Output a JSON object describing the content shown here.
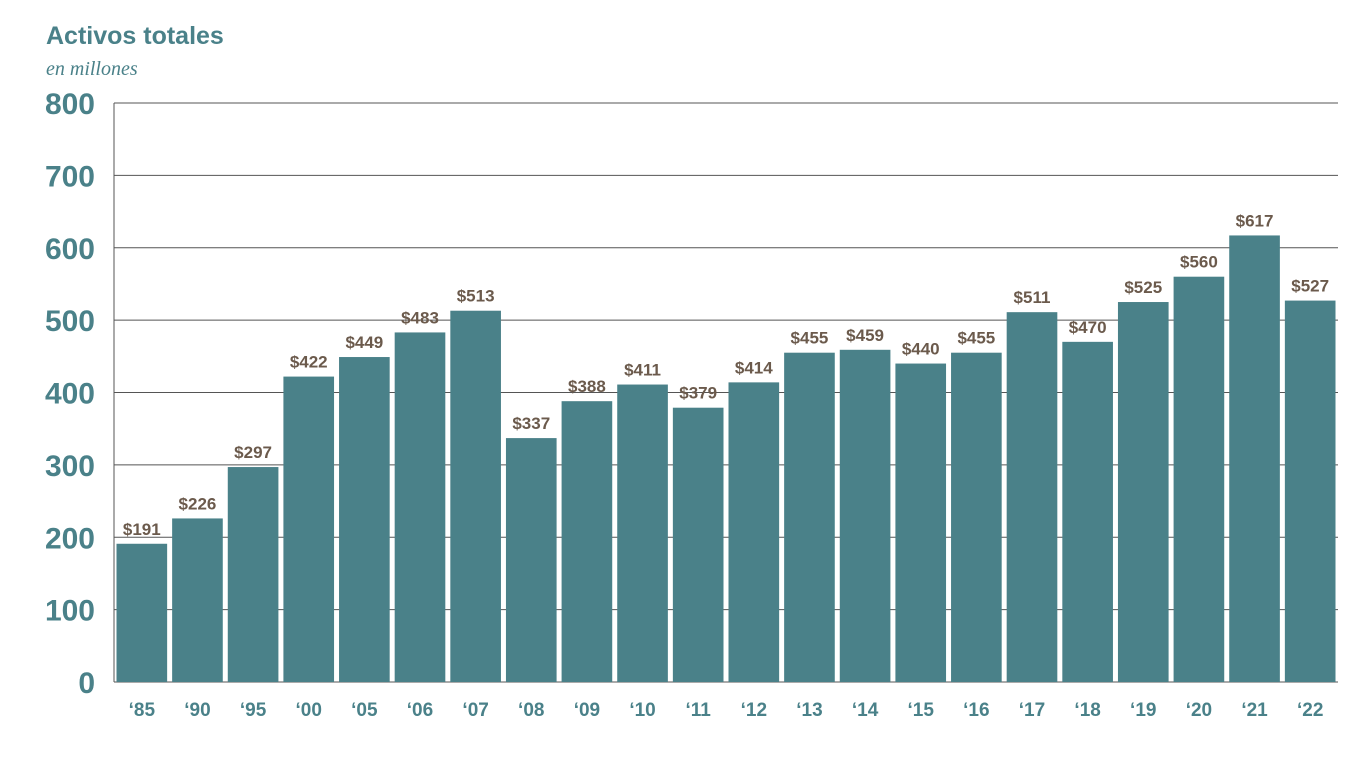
{
  "chart_data": {
    "type": "bar",
    "title": "Activos totales",
    "subtitle": "en millones",
    "xlabel": "",
    "ylabel": "",
    "categories": [
      "‘85",
      "‘90",
      "‘95",
      "‘00",
      "‘05",
      "‘06",
      "‘07",
      "‘08",
      "‘09",
      "‘10",
      "‘11",
      "‘12",
      "‘13",
      "‘14",
      "‘15",
      "‘16",
      "‘17",
      "‘18",
      "‘19",
      "‘20",
      "‘21",
      "‘22"
    ],
    "values": [
      191,
      226,
      297,
      422,
      449,
      483,
      513,
      337,
      388,
      411,
      379,
      414,
      455,
      459,
      440,
      455,
      511,
      470,
      525,
      560,
      617,
      527
    ],
    "data_labels": [
      "$191",
      "$226",
      "$297",
      "$422",
      "$449",
      "$483",
      "$513",
      "$337",
      "$388",
      "$411",
      "$379",
      "$414",
      "$455",
      "$459",
      "$440",
      "$455",
      "$511",
      "$470",
      "$525",
      "$560",
      "$617",
      "$527"
    ],
    "yticks": [
      "0",
      "100",
      "200",
      "300",
      "400",
      "500",
      "600",
      "700",
      "800"
    ],
    "ylim": [
      0,
      800
    ],
    "grid": true,
    "legend": "none",
    "colors": {
      "bar": "#4a8189",
      "axis_text": "#4a8189",
      "data_label": "#6b5a4c",
      "grid": "#555555"
    }
  }
}
